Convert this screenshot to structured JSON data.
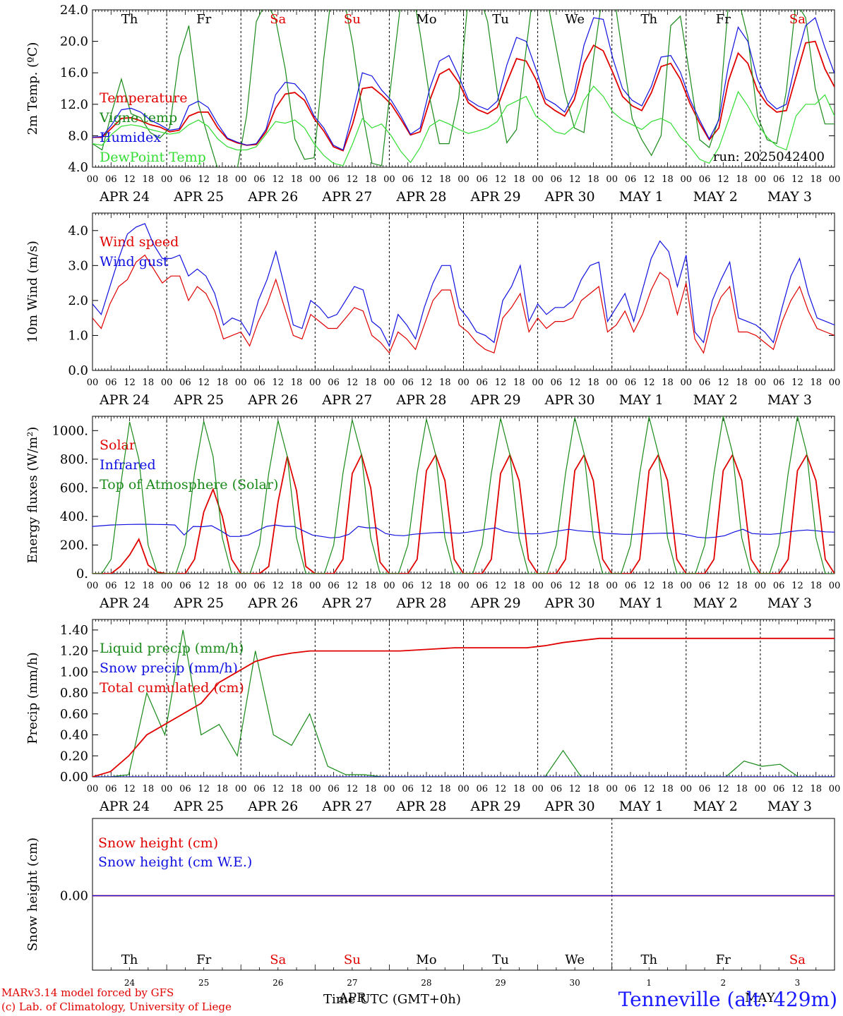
{
  "colors": {
    "red": "#e00000",
    "green": "#1a8a1a",
    "blue": "#1010e0",
    "lightgreen": "#33dd33",
    "black": "#000000"
  },
  "run_label": "run: 2025042400",
  "day_names": [
    {
      "name": "Th",
      "color": "black"
    },
    {
      "name": "Fr",
      "color": "black"
    },
    {
      "name": "Sa",
      "color": "red"
    },
    {
      "name": "Su",
      "color": "red"
    },
    {
      "name": "Mo",
      "color": "black"
    },
    {
      "name": "Tu",
      "color": "black"
    },
    {
      "name": "We",
      "color": "black"
    },
    {
      "name": "Th",
      "color": "black"
    },
    {
      "name": "Fr",
      "color": "black"
    },
    {
      "name": "Sa",
      "color": "red"
    }
  ],
  "date_labels": [
    "APR 24",
    "APR 25",
    "APR 26",
    "APR 27",
    "APR 28",
    "APR 29",
    "APR 30",
    "MAY  1",
    "MAY  2",
    "MAY  3"
  ],
  "hour_labels": [
    "00",
    "06",
    "12",
    "18"
  ],
  "bottom_day_numbers": [
    "24",
    "25",
    "26",
    "27",
    "28",
    "29",
    "30",
    "1",
    "2",
    "3"
  ],
  "footer": {
    "model_line": "MARv3.14 model forced by GFS",
    "lab_line": "(c) Lab. of Climatology, University of Liege",
    "time_label": "Time UTC (GMT+0h)",
    "apr_label": "APR",
    "may_label": "MAY",
    "station": "Tenneville (alt. 429m)"
  },
  "chart_data": [
    {
      "type": "line",
      "ylabel": "2m Temp. (ºC)",
      "ylim": [
        4.0,
        24.0
      ],
      "yticks": [
        "4.0",
        "8.0",
        "12.0",
        "16.0",
        "20.0",
        "24.0"
      ],
      "x_unit": "hours since APR 24 00 UTC (3-hourly)",
      "series": [
        {
          "name": "Temperature",
          "color": "red",
          "values": [
            7.8,
            7.8,
            9,
            10.2,
            10.3,
            9.9,
            9.4,
            9.1,
            8.5,
            8.7,
            10.5,
            11,
            11,
            9,
            7.6,
            7.1,
            6.8,
            6.9,
            8.5,
            11.5,
            13.3,
            13.5,
            12.5,
            10.2,
            8.6,
            6.6,
            6.1,
            9.5,
            14,
            14.2,
            13.2,
            12,
            10.1,
            8.1,
            8.5,
            12.5,
            15.8,
            16.5,
            14.8,
            12.2,
            11.3,
            10.8,
            11.6,
            14.8,
            17.8,
            17.5,
            15.2,
            12.1,
            11.2,
            10.5,
            12.6,
            17.2,
            19.5,
            18.8,
            16,
            13,
            11.8,
            11.2,
            13.5,
            16.8,
            17.2,
            15.2,
            12.1,
            9.6,
            7.5,
            9,
            15,
            18.5,
            17.2,
            13.8,
            12,
            11,
            11.2,
            15.5,
            19.8,
            20,
            16.5,
            14.2
          ]
        },
        {
          "name": "Vigne temp",
          "color": "green",
          "values": [
            7,
            6.2,
            11,
            15.2,
            10.8,
            10.3,
            8.4,
            7.7,
            9,
            18,
            22,
            12,
            7.8,
            3.8,
            3.2,
            3.6,
            10.6,
            22.5,
            25,
            22.8,
            16.5,
            7.6,
            5,
            5.2,
            17.8,
            28,
            26,
            19.7,
            11,
            4.5,
            4.2,
            14.8,
            25,
            28,
            21,
            12.8,
            7,
            7,
            12.8,
            25.5,
            26.5,
            22.5,
            13.6,
            7.1,
            8.8,
            19,
            29,
            26.5,
            20,
            13.5,
            9,
            8.4,
            18,
            26.5,
            26.8,
            18.4,
            10.2,
            7.5,
            5.5,
            8,
            22,
            23.2,
            15.5,
            7.5,
            6.5,
            10.2,
            25,
            25.5,
            20.5,
            10.5,
            7.5,
            7,
            13.7,
            25,
            23,
            14,
            9.5,
            9.5
          ]
        },
        {
          "name": "Humidex",
          "color": "blue",
          "values": [
            7.8,
            7.9,
            9.4,
            11.3,
            11.5,
            11,
            10,
            9.4,
            8.7,
            8.9,
            11.8,
            12.4,
            11.6,
            9.5,
            7.7,
            7.2,
            6.8,
            7,
            8.8,
            13.2,
            14.8,
            14.6,
            13.2,
            10.5,
            9,
            6.8,
            6.2,
            10.8,
            16,
            15.6,
            13.8,
            12.5,
            10.5,
            8.2,
            9,
            14,
            17.5,
            18.2,
            15.6,
            12.6,
            11.8,
            11.3,
            12.4,
            17,
            20.5,
            20,
            16.5,
            12.7,
            12,
            11,
            13.5,
            19.5,
            23,
            22.8,
            17.8,
            14,
            12.5,
            11.8,
            14.3,
            18,
            18.2,
            16.1,
            12.6,
            10,
            7.6,
            10,
            17,
            21.8,
            20,
            15.2,
            12.5,
            11.4,
            12,
            17.5,
            22,
            23,
            19.2,
            15.9
          ]
        },
        {
          "name": "DewPoint Temp",
          "color": "lightgreen",
          "values": [
            7,
            6.8,
            8.2,
            9.2,
            9.4,
            9.2,
            8.8,
            8.5,
            8.2,
            8.4,
            9.4,
            10,
            9.2,
            7.6,
            6.6,
            6.2,
            6.2,
            6.6,
            8.2,
            9.8,
            9.6,
            10,
            9,
            7,
            5.5,
            4.5,
            4.2,
            7,
            10.2,
            9,
            9.5,
            8,
            6,
            4.6,
            6.5,
            9.2,
            10,
            9.5,
            8.8,
            8.3,
            8.6,
            9,
            9.8,
            11.8,
            12.4,
            13,
            10.5,
            9.6,
            8.5,
            8.2,
            9.2,
            12.5,
            14.3,
            13,
            11,
            10,
            9.4,
            8.8,
            9.8,
            10.2,
            9.6,
            7.8,
            6.6,
            5,
            4.5,
            6.5,
            10,
            13.6,
            11.8,
            9.5,
            7.8,
            6.7,
            6.2,
            10.5,
            12,
            12,
            13.2,
            10.5
          ]
        }
      ]
    },
    {
      "type": "line",
      "ylabel": "10m Wind (m/s)",
      "ylim": [
        0.0,
        4.5
      ],
      "yticks": [
        "0.0",
        "1.0",
        "2.0",
        "3.0",
        "4.0"
      ],
      "series": [
        {
          "name": "Wind speed",
          "color": "red",
          "values": [
            1.5,
            1.2,
            1.9,
            2.4,
            2.6,
            3.1,
            3.3,
            2.9,
            2.5,
            2.7,
            2.7,
            2,
            2.4,
            2.2,
            1.7,
            0.9,
            1,
            1.1,
            0.7,
            1.4,
            1.9,
            2.6,
            1.8,
            1,
            0.9,
            1.6,
            1.4,
            1.2,
            1.2,
            1.5,
            1.8,
            1.7,
            1,
            0.8,
            0.5,
            1.1,
            0.9,
            0.6,
            1.3,
            2,
            2.3,
            2.3,
            1.3,
            1.1,
            0.8,
            0.6,
            0.5,
            1.5,
            1.8,
            2.2,
            1.1,
            1.5,
            1.2,
            1.4,
            1.4,
            1.5,
            2,
            2.2,
            2.4,
            1.1,
            1.3,
            1.7,
            1.1,
            1.6,
            2.3,
            2.8,
            2.6,
            1.6,
            2.5,
            0.9,
            0.5,
            1.5,
            2.1,
            2.4,
            1.1,
            1.1,
            1,
            0.8,
            0.6,
            1.4,
            2,
            2.4,
            1.7,
            1.2,
            1.1,
            1
          ]
        },
        {
          "name": "Wind gust",
          "color": "blue",
          "values": [
            1.9,
            1.6,
            2.4,
            3.2,
            3.9,
            4.1,
            4.2,
            3.6,
            3.2,
            3.2,
            3.3,
            2.7,
            2.9,
            2.7,
            2.2,
            1.3,
            1.5,
            1.4,
            1,
            2,
            2.6,
            3.4,
            2.4,
            1.3,
            1.2,
            2,
            1.8,
            1.5,
            1.6,
            2,
            2.4,
            2.3,
            1.4,
            1.2,
            0.7,
            1.6,
            1.3,
            0.9,
            1.8,
            2.5,
            3,
            3,
            1.8,
            1.5,
            1.1,
            1,
            0.8,
            2,
            2.4,
            3,
            1.4,
            1.9,
            1.6,
            1.8,
            1.8,
            2,
            2.6,
            3,
            3.1,
            1.4,
            1.8,
            2.2,
            1.4,
            2.3,
            3.2,
            3.7,
            3.4,
            2.4,
            3.3,
            1.1,
            0.8,
            2,
            2.6,
            3.1,
            1.5,
            1.4,
            1.3,
            1.1,
            0.8,
            1.8,
            2.7,
            3.2,
            2.2,
            1.5,
            1.4,
            1.3
          ]
        }
      ]
    },
    {
      "type": "line",
      "ylabel": "Energy fluxes (W/m²)",
      "ylim": [
        0,
        1100
      ],
      "yticks": [
        "0.",
        "200.",
        "400.",
        "600.",
        "800.",
        "1000."
      ],
      "series": [
        {
          "name": "Solar",
          "color": "red",
          "values": [
            0,
            0,
            0,
            50,
            130,
            240,
            60,
            10,
            0,
            0,
            0,
            100,
            430,
            590,
            400,
            100,
            0,
            0,
            0,
            50,
            500,
            820,
            580,
            50,
            0,
            0,
            0,
            100,
            700,
            830,
            600,
            80,
            0,
            0,
            0,
            100,
            720,
            830,
            650,
            100,
            0,
            0,
            0,
            100,
            700,
            830,
            650,
            100,
            0,
            0,
            0,
            100,
            720,
            830,
            650,
            100,
            0,
            0,
            0,
            100,
            720,
            830,
            650,
            100,
            0,
            0,
            0,
            100,
            720,
            830,
            650,
            100,
            0,
            0,
            0,
            100,
            720,
            830,
            650,
            100,
            0
          ]
        },
        {
          "name": "Infrared",
          "color": "blue",
          "values": [
            330,
            335,
            340,
            342,
            344,
            345,
            345,
            344,
            343,
            340,
            270,
            330,
            328,
            335,
            300,
            260,
            260,
            270,
            300,
            330,
            340,
            330,
            330,
            300,
            270,
            260,
            250,
            255,
            275,
            330,
            320,
            320,
            280,
            268,
            265,
            275,
            280,
            285,
            288,
            285,
            282,
            290,
            300,
            310,
            320,
            295,
            285,
            280,
            278,
            280,
            290,
            300,
            310,
            300,
            295,
            290,
            282,
            278,
            275,
            275,
            278,
            280,
            282,
            283,
            280,
            270,
            255,
            250,
            255,
            265,
            290,
            310,
            280,
            276,
            275,
            280,
            292,
            300,
            305,
            300,
            292,
            290
          ]
        },
        {
          "name": "Top of Atmosphere (Solar)",
          "color": "green",
          "values": [
            0,
            0,
            100,
            600,
            1060,
            800,
            200,
            0,
            0,
            0,
            200,
            700,
            1065,
            820,
            250,
            0,
            0,
            0,
            200,
            700,
            1070,
            820,
            250,
            0,
            0,
            0,
            200,
            700,
            1075,
            830,
            250,
            0,
            0,
            0,
            200,
            700,
            1080,
            830,
            250,
            0,
            0,
            0,
            200,
            700,
            1085,
            830,
            250,
            0,
            0,
            0,
            200,
            700,
            1090,
            840,
            250,
            0,
            0,
            0,
            200,
            700,
            1095,
            840,
            250,
            0,
            0,
            0,
            200,
            700,
            1100,
            845,
            250,
            0,
            0,
            0,
            200,
            700,
            1100,
            845,
            250,
            0,
            0
          ]
        }
      ]
    },
    {
      "type": "line",
      "ylabel": "Precip (mm/h)",
      "ylim": [
        0.0,
        1.5
      ],
      "yticks": [
        "0.00",
        "0.20",
        "0.40",
        "0.60",
        "0.80",
        "1.00",
        "1.20",
        "1.40"
      ],
      "series": [
        {
          "name": "Liquid precip (mm/h)",
          "color": "green",
          "values": [
            0,
            0,
            0.02,
            0.8,
            0.4,
            1.4,
            0.4,
            0.5,
            0.2,
            1.2,
            0.4,
            0.3,
            0.6,
            0.1,
            0.02,
            0.02,
            0,
            0,
            0,
            0,
            0,
            0,
            0,
            0,
            0,
            0,
            0.25,
            0,
            0,
            0,
            0,
            0,
            0,
            0,
            0,
            0,
            0.15,
            0.1,
            0.12,
            0,
            0,
            0
          ]
        },
        {
          "name": "Snow precip (mm/h)",
          "color": "blue",
          "values": [
            0,
            0,
            0,
            0,
            0,
            0,
            0,
            0,
            0,
            0,
            0,
            0,
            0,
            0,
            0,
            0,
            0,
            0,
            0,
            0,
            0,
            0,
            0,
            0,
            0,
            0,
            0,
            0,
            0,
            0,
            0,
            0,
            0,
            0,
            0,
            0,
            0,
            0,
            0,
            0,
            0,
            0
          ]
        },
        {
          "name": "Total cumulated (cm)",
          "color": "red",
          "values": [
            0,
            0.05,
            0.2,
            0.4,
            0.5,
            0.6,
            0.7,
            0.9,
            1.0,
            1.1,
            1.15,
            1.18,
            1.2,
            1.2,
            1.2,
            1.2,
            1.2,
            1.2,
            1.21,
            1.22,
            1.23,
            1.23,
            1.23,
            1.23,
            1.23,
            1.25,
            1.28,
            1.3,
            1.32,
            1.32,
            1.32,
            1.32,
            1.32,
            1.32,
            1.32,
            1.32,
            1.32,
            1.32,
            1.32,
            1.32,
            1.32,
            1.32
          ]
        }
      ]
    },
    {
      "type": "line",
      "ylabel": "Snow height (cm)",
      "yticks": [
        "0.00"
      ],
      "series": [
        {
          "name": "Snow height (cm)",
          "color": "red",
          "values": [
            0,
            0
          ]
        },
        {
          "name": "Snow height (cm W.E.)",
          "color": "blue",
          "values": [
            0,
            0
          ]
        }
      ]
    }
  ]
}
